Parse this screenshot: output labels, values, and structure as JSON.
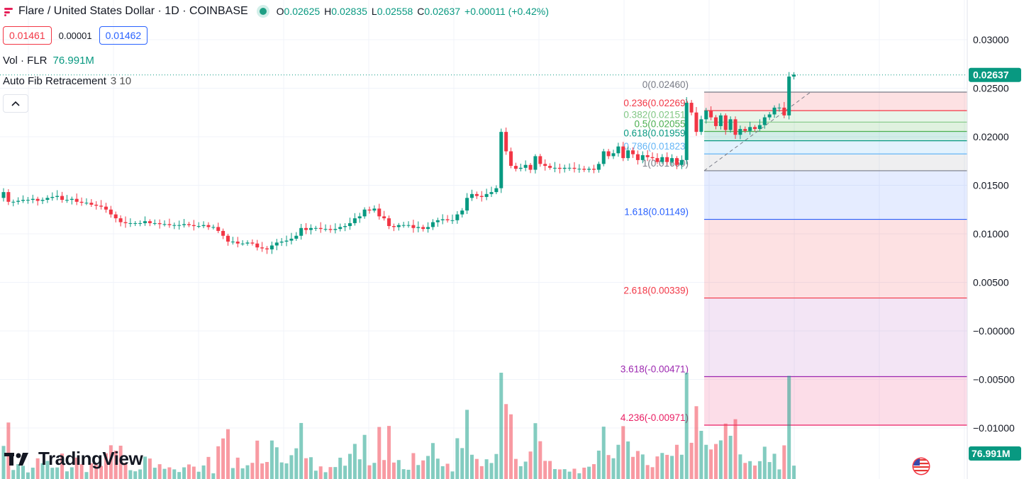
{
  "header": {
    "symbol_title": "Flare / United States Dollar · 1D · COINBASE",
    "ohlc": {
      "o_label": "O",
      "o": "0.02625",
      "h_label": "H",
      "h": "0.02835",
      "l_label": "L",
      "l": "0.02558",
      "c_label": "C",
      "c": "0.02637",
      "change": "+0.00011 (+0.42%)"
    },
    "sell_price": "0.01461",
    "spread": "0.00001",
    "buy_price": "0.01462"
  },
  "volume_legend": {
    "label": "Vol · FLR",
    "value": "76.991M"
  },
  "indicator_legend": {
    "name": "Auto Fib Retracement",
    "args": "3 10"
  },
  "branding": {
    "logo_text": "TradingView"
  },
  "colors": {
    "up": "#089981",
    "down": "#f23645",
    "accent": "#2962ff"
  },
  "icons": {
    "brand": "flare-logo-icon",
    "live": "live-dot-icon",
    "collapse": "chevron-up-icon",
    "flag": "us-flag-icon",
    "logo": "tradingview-logo-icon"
  },
  "chart_data": {
    "type": "candlestick",
    "y_axis": {
      "ticks": [
        "0.03000",
        "0.02500",
        "0.02000",
        "0.01500",
        "0.01000",
        "0.00500",
        "−0.00000",
        "−0.00500",
        "−0.01000"
      ],
      "tick_values": [
        0.03,
        0.025,
        0.02,
        0.015,
        0.01,
        0.005,
        0,
        -0.005,
        -0.01
      ],
      "ylim": [
        -0.0118,
        0.0343
      ],
      "last_price_label": "0.02637",
      "last_price": 0.02637,
      "volume_label": "76.991M"
    },
    "closes": [
      0.0143,
      0.0133,
      0.0133,
      0.0134,
      0.0135,
      0.0135,
      0.0136,
      0.0134,
      0.0135,
      0.0137,
      0.0138,
      0.0139,
      0.0135,
      0.0135,
      0.0136,
      0.0133,
      0.0132,
      0.0132,
      0.013,
      0.0129,
      0.0128,
      0.0125,
      0.012,
      0.0116,
      0.0112,
      0.0111,
      0.0111,
      0.0111,
      0.0111,
      0.0113,
      0.0111,
      0.0111,
      0.011,
      0.011,
      0.0109,
      0.0109,
      0.0109,
      0.011,
      0.0109,
      0.0108,
      0.0108,
      0.0109,
      0.0107,
      0.0107,
      0.0103,
      0.0098,
      0.0092,
      0.0092,
      0.009,
      0.009,
      0.0091,
      0.009,
      0.0086,
      0.0085,
      0.0084,
      0.0088,
      0.0091,
      0.0092,
      0.0093,
      0.0095,
      0.0098,
      0.0106,
      0.0104,
      0.0106,
      0.0106,
      0.0105,
      0.0105,
      0.0104,
      0.0105,
      0.0107,
      0.0108,
      0.0111,
      0.0116,
      0.0118,
      0.0125,
      0.0124,
      0.0126,
      0.0118,
      0.0116,
      0.0108,
      0.0107,
      0.0109,
      0.0109,
      0.0109,
      0.0106,
      0.0107,
      0.0105,
      0.0107,
      0.0112,
      0.0114,
      0.0115,
      0.0114,
      0.0114,
      0.012,
      0.0124,
      0.0137,
      0.0141,
      0.0139,
      0.0138,
      0.0141,
      0.0143,
      0.0147,
      0.0205,
      0.0185,
      0.017,
      0.0167,
      0.0168,
      0.0171,
      0.0166,
      0.018,
      0.0172,
      0.017,
      0.0168,
      0.0168,
      0.0167,
      0.0168,
      0.0168,
      0.0167,
      0.0167,
      0.0166,
      0.0167,
      0.0166,
      0.0172,
      0.0185,
      0.018,
      0.0183,
      0.019,
      0.0178,
      0.0186,
      0.0182,
      0.0176,
      0.0181,
      0.0179,
      0.0178,
      0.0174,
      0.0179,
      0.0174,
      0.0178,
      0.0171,
      0.0176,
      0.0235,
      0.0225,
      0.0205,
      0.0218,
      0.0227,
      0.022,
      0.0211,
      0.0222,
      0.0207,
      0.0218,
      0.0202,
      0.0208,
      0.0206,
      0.021,
      0.0208,
      0.0212,
      0.022,
      0.0223,
      0.023,
      0.023,
      0.0222,
      0.0262,
      0.0264
    ],
    "volume_peaks_note": "",
    "fib_levels": [
      {
        "label": "0(0.02460)",
        "price": 0.0246,
        "color": "#787b86"
      },
      {
        "label": "0.236(0.02269)",
        "price": 0.02269,
        "color": "#f23645"
      },
      {
        "label": "0.382(0.02151)",
        "price": 0.02151,
        "color": "#81c784"
      },
      {
        "label": "0.5(0.02055)",
        "price": 0.02055,
        "color": "#4caf50"
      },
      {
        "label": "0.618(0.01959)",
        "price": 0.01959,
        "color": "#089981"
      },
      {
        "label": "0.786(0.01823)",
        "price": 0.01823,
        "color": "#64b5f6"
      },
      {
        "label": "1(0.01650)",
        "price": 0.0165,
        "color": "#787b86"
      },
      {
        "label": "1.618(0.01149)",
        "price": 0.01149,
        "color": "#2962ff"
      },
      {
        "label": "2.618(0.00339)",
        "price": 0.00339,
        "color": "#f23645"
      },
      {
        "label": "3.618(-0.00471)",
        "price": -0.00471,
        "color": "#9c27b0"
      },
      {
        "label": "4.236(-0.00971)",
        "price": -0.00971,
        "color": "#e91e63"
      }
    ]
  }
}
